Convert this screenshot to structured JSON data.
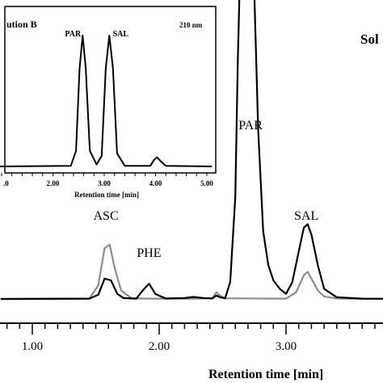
{
  "chart_data": [
    {
      "type": "line",
      "title": "Sol",
      "xlabel": "Retention time [min]",
      "ylabel": "",
      "xlim": [
        0.75,
        4.4
      ],
      "x_ticks": [
        "1.00",
        "2.00",
        "3.00"
      ],
      "grid": false,
      "peak_labels": [
        {
          "text": "ASC",
          "x": 1.58
        },
        {
          "text": "PHE",
          "x": 1.92
        },
        {
          "text": "PAR",
          "x": 2.72
        },
        {
          "text": "SAL",
          "x": 3.16
        }
      ],
      "series": [
        {
          "color": "#000000",
          "x": [
            0.75,
            1.45,
            1.52,
            1.57,
            1.62,
            1.67,
            1.72,
            1.82,
            1.87,
            1.92,
            1.97,
            2.05,
            2.2,
            2.27,
            2.35,
            2.42,
            2.45,
            2.48,
            2.52,
            2.56,
            2.6,
            2.62,
            2.66,
            2.72,
            2.78,
            2.82,
            2.86,
            2.9,
            2.95,
            3.0,
            3.05,
            3.1,
            3.14,
            3.17,
            3.2,
            3.25,
            3.3,
            3.4,
            3.6,
            4.4
          ],
          "y": [
            0,
            0.2,
            2.5,
            12,
            11,
            3,
            0.5,
            0.2,
            5,
            9,
            3,
            0.3,
            0.5,
            1.2,
            0.5,
            0.3,
            2,
            1,
            0.4,
            10,
            60,
            140,
            260,
            260,
            100,
            40,
            20,
            11,
            6,
            3,
            10,
            28,
            42,
            44,
            38,
            20,
            6,
            1,
            0.2,
            0
          ]
        },
        {
          "color": "#8c8c8c",
          "x": [
            0.75,
            1.45,
            1.52,
            1.57,
            1.61,
            1.65,
            1.7,
            1.78,
            1.9,
            2.3,
            2.42,
            2.45,
            2.48,
            2.52,
            3.0,
            3.08,
            3.14,
            3.17,
            3.2,
            3.25,
            3.3,
            3.4,
            3.6,
            4.4
          ],
          "y": [
            0,
            0.3,
            8,
            30,
            32,
            18,
            5,
            0.5,
            0.2,
            0.2,
            0.5,
            4,
            2,
            0.4,
            0.2,
            4,
            14,
            16,
            12,
            5,
            1.5,
            0.3,
            0.1,
            0
          ]
        }
      ]
    },
    {
      "type": "line",
      "title": "ution B",
      "annotation": "210 nm",
      "xlabel": "Retention time [min]",
      "ylabel": "",
      "xlim": [
        0.9,
        5.1
      ],
      "x_ticks": [
        ".0",
        "2.00",
        "3.00",
        "4.00",
        "5.00"
      ],
      "grid": false,
      "peak_labels": [
        {
          "text": "PAR",
          "x": 2.58
        },
        {
          "text": "SAL",
          "x": 3.1
        }
      ],
      "series": [
        {
          "color": "#000000",
          "x": [
            0.9,
            2.35,
            2.45,
            2.52,
            2.58,
            2.64,
            2.72,
            2.85,
            2.95,
            3.03,
            3.1,
            3.17,
            3.25,
            3.4,
            3.9,
            3.97,
            4.03,
            4.1,
            4.2,
            5.1
          ],
          "y": [
            0,
            0.5,
            12,
            75,
            100,
            75,
            12,
            1.5,
            8,
            75,
            100,
            75,
            10,
            0.5,
            0.5,
            5,
            7,
            4,
            0.5,
            0
          ]
        }
      ]
    }
  ]
}
